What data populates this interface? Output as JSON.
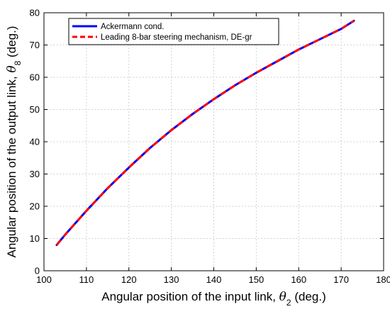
{
  "chart_data": {
    "type": "line",
    "xlabel": {
      "prefix": "Angular position of the input link, ",
      "symbol": "θ",
      "subscript": "2",
      "suffix": " (deg.)"
    },
    "ylabel": {
      "prefix": "Angular position of the output link, ",
      "symbol": "θ",
      "subscript": "8",
      "suffix": " (deg.)"
    },
    "xlim": [
      100,
      180
    ],
    "ylim": [
      0,
      80
    ],
    "xticks": [
      100,
      110,
      120,
      130,
      140,
      150,
      160,
      170,
      180
    ],
    "yticks": [
      0,
      10,
      20,
      30,
      40,
      50,
      60,
      70,
      80
    ],
    "grid": "dotted",
    "legend_position": "top-left",
    "series": [
      {
        "name": "Ackermann cond.",
        "color": "#0000ff",
        "style": "solid",
        "x": [
          103,
          105,
          110,
          115,
          120,
          125,
          130,
          135,
          140,
          145,
          150,
          155,
          160,
          165,
          170,
          173
        ],
        "y": [
          8,
          11.2,
          18.6,
          25.6,
          32,
          38.1,
          43.6,
          48.6,
          53.2,
          57.5,
          61.4,
          65,
          68.6,
          71.8,
          75,
          77.5
        ]
      },
      {
        "name": "Leading 8-bar steering mechanism, DE-gr",
        "color": "#ff0000",
        "style": "dashed",
        "x": [
          103,
          105,
          110,
          115,
          120,
          125,
          130,
          135,
          140,
          145,
          150,
          155,
          160,
          165,
          170,
          173
        ],
        "y": [
          8,
          11.2,
          18.6,
          25.6,
          32,
          38.1,
          43.6,
          48.6,
          53.2,
          57.5,
          61.4,
          65,
          68.6,
          71.8,
          75,
          77.5
        ]
      }
    ]
  }
}
